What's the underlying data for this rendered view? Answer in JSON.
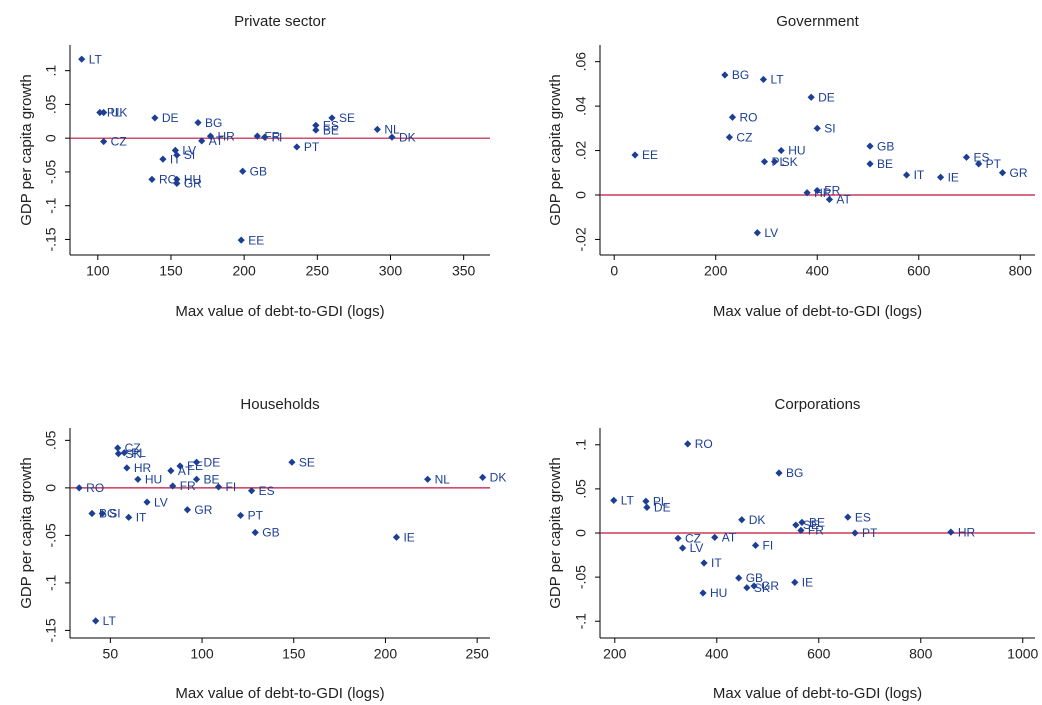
{
  "chart_data": [
    {
      "type": "scatter",
      "title": "Private sector",
      "x_label": "Max value of debt-to-GDI (logs)",
      "y_label": "GDP per capita growth",
      "color": "#1c3f94",
      "reference_line": {
        "value": 0,
        "color": "#c0143c"
      },
      "xlim": [
        81,
        368
      ],
      "ylim": [
        -0.173,
        0.138
      ],
      "xticks": [
        100,
        150,
        200,
        250,
        300,
        350
      ],
      "yticks": [
        {
          "value": -0.15,
          "label": "-.15"
        },
        {
          "value": -0.1,
          "label": "-.1"
        },
        {
          "value": -0.05,
          "label": "-.05"
        },
        0,
        {
          "value": 0.05,
          "label": ".05"
        },
        {
          "value": 0.1,
          "label": ".1"
        }
      ],
      "point_labels": [
        "LT",
        "PL",
        "UK",
        "DE",
        "BG",
        "CZ",
        "LV",
        "IT",
        "SI",
        "RO",
        "HU",
        "GR",
        "AT",
        "HR",
        "FR",
        "FI",
        "GB",
        "EE",
        "PT",
        "SE",
        "ES",
        "BE",
        "NL",
        "DK"
      ],
      "x": [
        89,
        101.4,
        104,
        139,
        168.5,
        104,
        153,
        144.5,
        154,
        137,
        154,
        154,
        171,
        177,
        209,
        214,
        199,
        198,
        236,
        260,
        249,
        249,
        291,
        301
      ],
      "values": [
        0.117,
        0.038,
        0.038,
        0.03,
        0.023,
        -0.005,
        -0.018,
        -0.031,
        -0.025,
        -0.061,
        -0.061,
        -0.067,
        -0.004,
        0.003,
        0.003,
        0.0015,
        -0.049,
        -0.151,
        -0.013,
        0.03,
        0.019,
        0.012,
        0.013,
        0.0015
      ]
    },
    {
      "type": "scatter",
      "title": "Government",
      "x_label": "Max value of debt-to-GDI (logs)",
      "y_label": "GDP per capita growth",
      "color": "#1c3f94",
      "reference_line": {
        "value": 0,
        "color": "#c0143c"
      },
      "xlim": [
        -28,
        829
      ],
      "ylim": [
        -0.027,
        0.0675
      ],
      "xticks": [
        0,
        200,
        400,
        600,
        800
      ],
      "yticks": [
        {
          "value": -0.02,
          "label": "-.02"
        },
        0,
        {
          "value": 0.02,
          "label": ".02"
        },
        {
          "value": 0.04,
          "label": ".04"
        },
        {
          "value": 0.06,
          "label": ".06"
        }
      ],
      "point_labels": [
        "EE",
        "BG",
        "LT",
        "DE",
        "RO",
        "CZ",
        "SI",
        "HU",
        "PL",
        "SK",
        "GB",
        "BE",
        "IT",
        "IE",
        "ES",
        "PT",
        "GR",
        "HR",
        "FR",
        "AT",
        "LV"
      ],
      "x": [
        41,
        218,
        294,
        388,
        233,
        227,
        400,
        329,
        296,
        316,
        504,
        504,
        576,
        643,
        694,
        718,
        765,
        380,
        400,
        424,
        282
      ],
      "values": [
        0.018,
        0.054,
        0.052,
        0.044,
        0.035,
        0.026,
        0.03,
        0.02,
        0.015,
        0.015,
        0.022,
        0.014,
        0.009,
        0.008,
        0.017,
        0.014,
        0.01,
        0.001,
        0.002,
        -0.002,
        -0.017
      ]
    },
    {
      "type": "scatter",
      "title": "Households",
      "x_label": "Max value of debt-to-GDI (logs)",
      "y_label": "GDP per capita growth",
      "color": "#1c3f94",
      "reference_line": {
        "value": 0,
        "color": "#c0143c"
      },
      "xlim": [
        28,
        257
      ],
      "ylim": [
        -0.158,
        0.063
      ],
      "xticks": [
        50,
        100,
        150,
        200,
        250
      ],
      "yticks": [
        {
          "value": -0.15,
          "label": "-.15"
        },
        {
          "value": -0.1,
          "label": "-.1"
        },
        {
          "value": -0.05,
          "label": "-.05"
        },
        0,
        {
          "value": 0.05,
          "label": ".05"
        }
      ],
      "point_labels": [
        "CZ",
        "SK",
        "PL",
        "HR",
        "HU",
        "DE",
        "AT",
        "EE",
        "FR",
        "BE",
        "FI",
        "ES",
        "SE",
        "RO",
        "LV",
        "GR",
        "BG",
        "SI",
        "IT",
        "PT",
        "GB",
        "IE",
        "NL",
        "DK",
        "LT"
      ],
      "x": [
        54,
        54.4,
        57.6,
        59,
        65,
        97,
        83,
        88,
        84,
        97,
        109,
        127,
        149,
        33,
        70,
        92,
        40,
        45.6,
        60,
        121,
        129,
        206,
        223,
        253,
        42
      ],
      "values": [
        0.042,
        0.036,
        0.037,
        0.021,
        0.009,
        0.027,
        0.018,
        0.023,
        0.002,
        0.009,
        0.001,
        -0.003,
        0.027,
        0,
        -0.015,
        -0.023,
        -0.027,
        -0.027,
        -0.031,
        -0.029,
        -0.047,
        -0.052,
        0.009,
        0.011,
        -0.14
      ]
    },
    {
      "type": "scatter",
      "title": "Corporations",
      "x_label": "Max value of debt-to-GDI (logs)",
      "y_label": "GDP per capita growth",
      "color": "#1c3f94",
      "reference_line": {
        "value": 0,
        "color": "#c0143c"
      },
      "xlim": [
        171,
        1024
      ],
      "ylim": [
        -0.119,
        0.119
      ],
      "xticks": [
        200,
        400,
        600,
        800,
        1000
      ],
      "yticks": [
        {
          "value": -0.1,
          "label": "-.1"
        },
        {
          "value": -0.05,
          "label": "-.05"
        },
        0,
        {
          "value": 0.05,
          "label": ".05"
        },
        {
          "value": 0.1,
          "label": ".1"
        }
      ],
      "point_labels": [
        "RO",
        "BG",
        "LT",
        "PL",
        "DE",
        "DK",
        "ES",
        "SE",
        "BE",
        "FR",
        "PT",
        "HR",
        "CZ",
        "AT",
        "LV",
        "FI",
        "IT",
        "GB",
        "SK",
        "GR",
        "IE",
        "HU"
      ],
      "x": [
        343,
        522,
        198,
        261,
        263,
        449,
        657,
        555,
        567,
        565,
        671,
        859,
        324,
        396,
        333,
        476,
        375,
        443,
        459,
        473,
        553,
        373
      ],
      "values": [
        0.101,
        0.068,
        0.037,
        0.036,
        0.029,
        0.015,
        0.018,
        0.009,
        0.012,
        0.003,
        0,
        0.001,
        -0.006,
        -0.005,
        -0.017,
        -0.014,
        -0.034,
        -0.051,
        -0.062,
        -0.06,
        -0.056,
        -0.068
      ]
    }
  ]
}
